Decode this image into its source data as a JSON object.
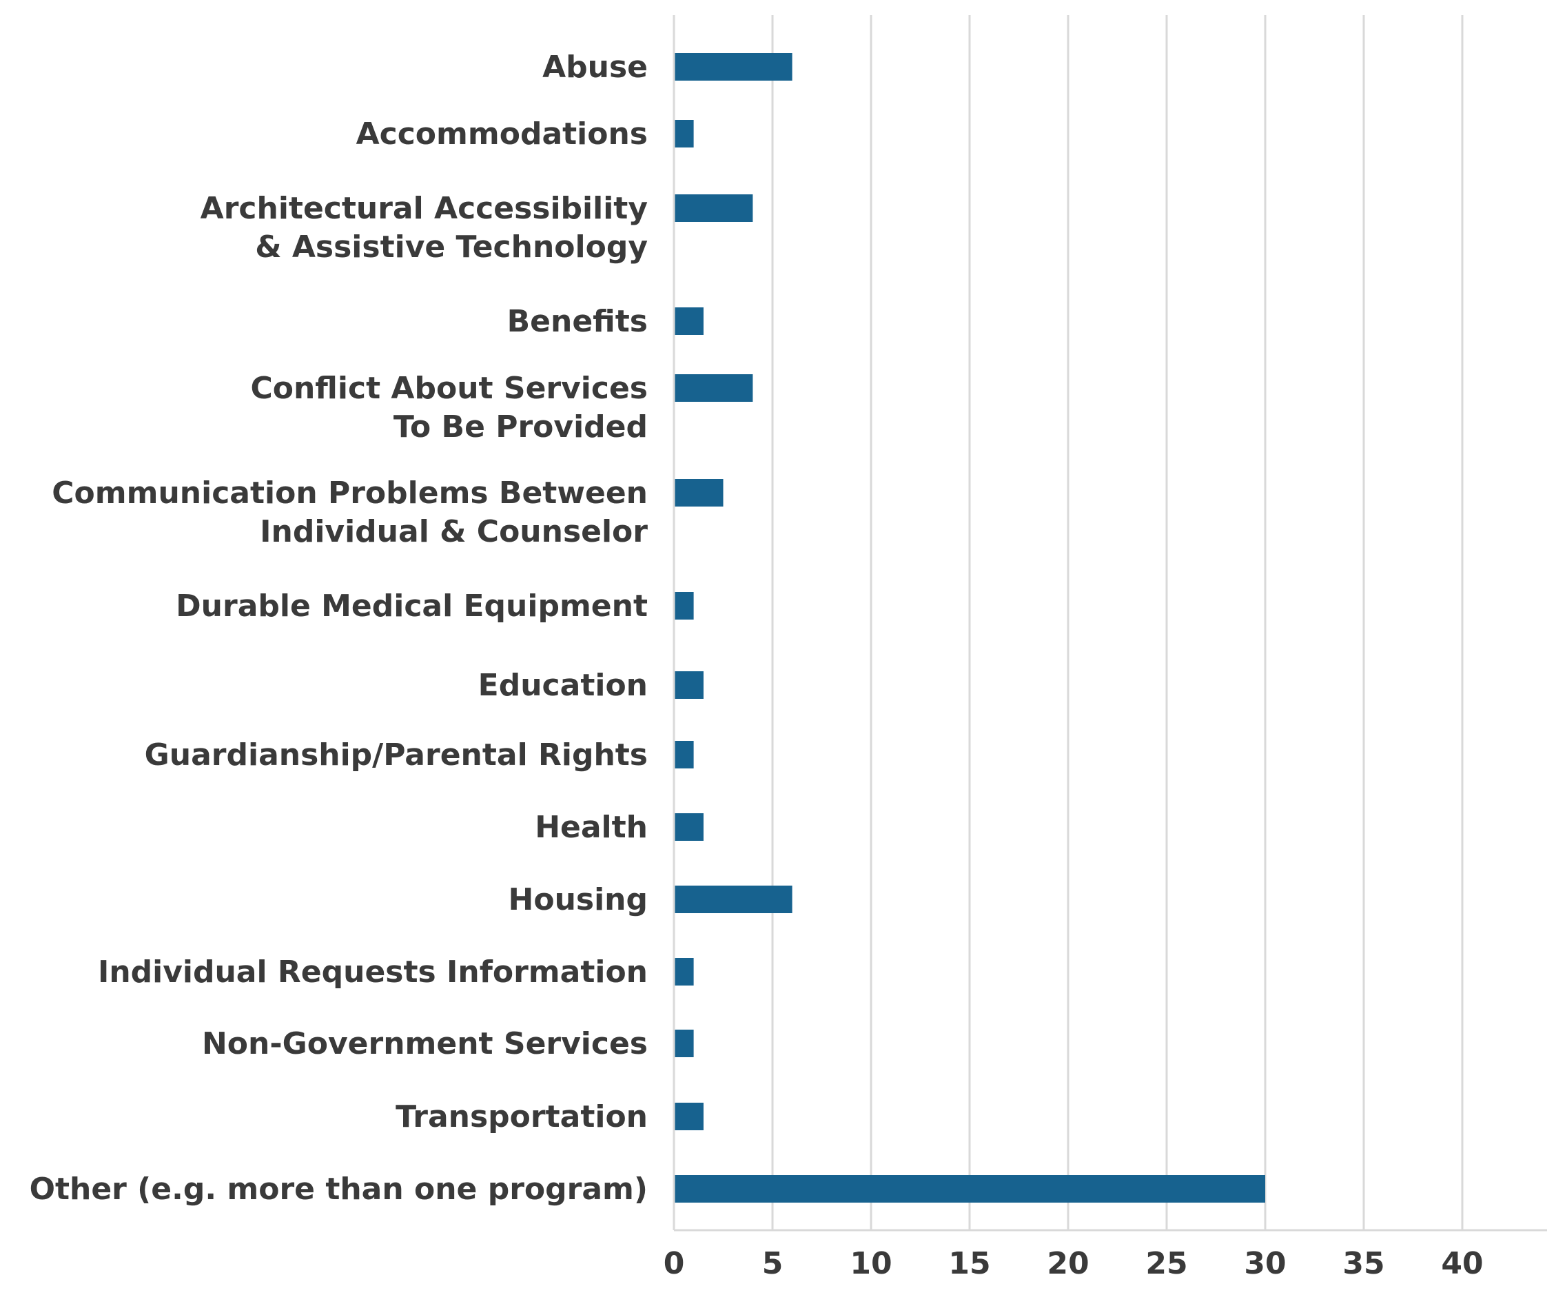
{
  "chart_data": {
    "type": "bar",
    "orientation": "horizontal",
    "categories": [
      [
        "Abuse"
      ],
      [
        "Accommodations"
      ],
      [
        "Architectural Accessibility",
        "& Assistive Technology"
      ],
      [
        "Benefits"
      ],
      [
        "Conflict About Services",
        "To Be Provided"
      ],
      [
        "Communication Problems Between",
        "Individual & Counselor"
      ],
      [
        "Durable Medical Equipment"
      ],
      [
        "Education"
      ],
      [
        "Guardianship/Parental Rights"
      ],
      [
        "Health"
      ],
      [
        "Housing"
      ],
      [
        "Individual Requests Information"
      ],
      [
        "Non-Government Services"
      ],
      [
        "Transportation"
      ],
      [
        "Other (e.g. more than one program)"
      ]
    ],
    "values": [
      6,
      1,
      4,
      1.5,
      4,
      2.5,
      1,
      1.5,
      1,
      1.5,
      6,
      1,
      1,
      1.5,
      30
    ],
    "xlim": [
      0,
      44
    ],
    "xticks": [
      0,
      5,
      10,
      15,
      20,
      25,
      30,
      35,
      40
    ],
    "grid": true,
    "bar_color": "#17628f",
    "title": "",
    "xlabel": "",
    "ylabel": ""
  }
}
